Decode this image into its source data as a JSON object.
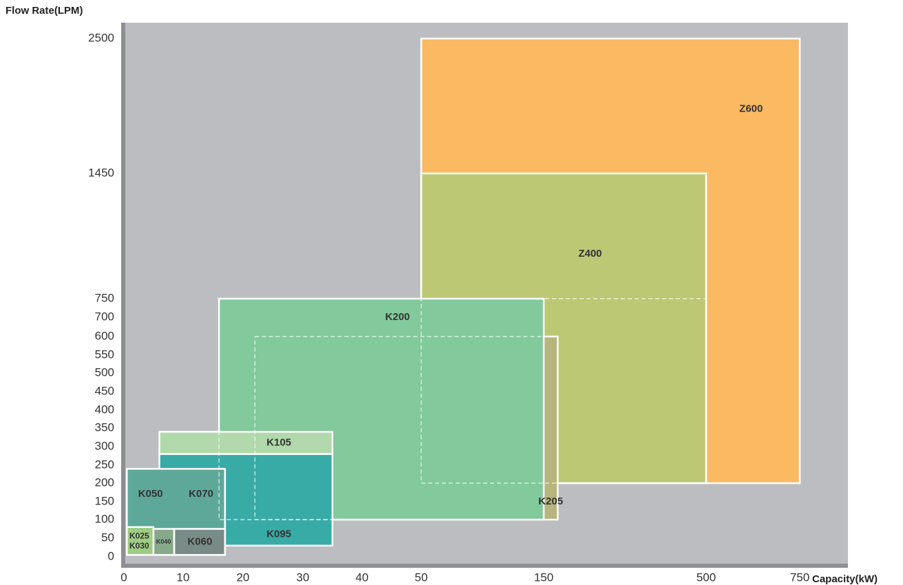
{
  "chart_data": {
    "type": "area",
    "title": "",
    "xlabel": "Capacity(kW)",
    "ylabel": "Flow Rate(LPM)",
    "x_ticks": [
      "0",
      "10",
      "20",
      "30",
      "40",
      "50",
      "150",
      "500",
      "750"
    ],
    "y_ticks": [
      "0",
      "50",
      "100",
      "150",
      "200",
      "250",
      "300",
      "350",
      "400",
      "450",
      "500",
      "550",
      "600",
      "650",
      "700",
      "750",
      "1450",
      "2500"
    ],
    "colors": {
      "plot_background": "#bcbdc0",
      "axis": "#8e8f92",
      "Z600": "#fbb962",
      "Z400": "#bcc874",
      "K205": "#b5b57d",
      "K200": "#82c99b",
      "K105": "#b1d9ab",
      "K095": "#39aba7",
      "K050_K070": "#5ea89a",
      "K025_K030": "#9ecc84",
      "K040": "#87a98a",
      "K060": "#798b86"
    },
    "series": [
      {
        "name": "Z600",
        "label": "Z600",
        "capacity_kw": [
          50,
          750
        ],
        "flow_lpm": [
          200,
          2500
        ]
      },
      {
        "name": "Z400",
        "label": "Z400",
        "capacity_kw": [
          50,
          500
        ],
        "flow_lpm": [
          200,
          1450
        ]
      },
      {
        "name": "K205",
        "label": "K205",
        "capacity_kw": [
          22,
          180
        ],
        "flow_lpm": [
          100,
          600
        ]
      },
      {
        "name": "K200",
        "label": "K200",
        "capacity_kw": [
          16,
          150
        ],
        "flow_lpm": [
          100,
          750
        ]
      },
      {
        "name": "K105",
        "label": "K105",
        "capacity_kw": [
          6,
          35
        ],
        "flow_lpm": [
          280,
          340
        ]
      },
      {
        "name": "K095",
        "label": "K095",
        "capacity_kw": [
          6,
          35
        ],
        "flow_lpm": [
          30,
          280
        ]
      },
      {
        "name": "K050_K070",
        "label_a": "K050",
        "label_b": "K070",
        "capacity_kw": [
          0.5,
          17
        ],
        "flow_lpm": [
          5,
          240
        ]
      },
      {
        "name": "K025_K030",
        "label_a": "K025",
        "label_b": "K030",
        "capacity_kw": [
          0.5,
          5
        ],
        "flow_lpm": [
          5,
          80
        ]
      },
      {
        "name": "K040",
        "label": "K040",
        "capacity_kw": [
          5,
          8.5
        ],
        "flow_lpm": [
          5,
          75
        ]
      },
      {
        "name": "K060",
        "label": "K060",
        "capacity_kw": [
          8.5,
          17
        ],
        "flow_lpm": [
          5,
          75
        ]
      }
    ]
  }
}
